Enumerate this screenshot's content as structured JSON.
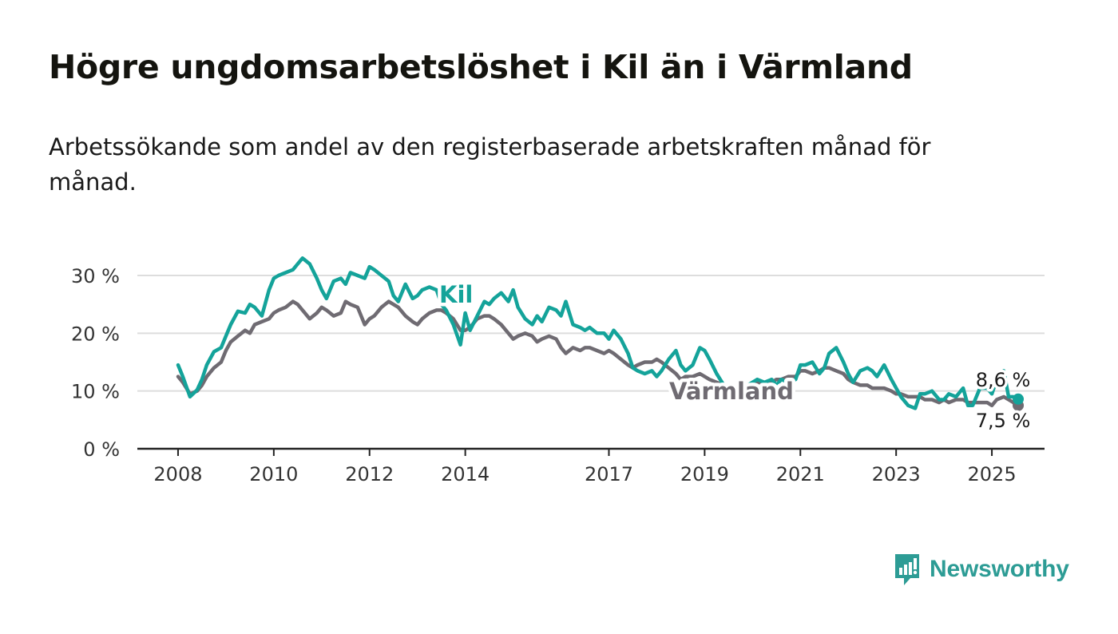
{
  "title": "Högre ungdomsarbetslöshet i Kil än i Värmland",
  "subtitle": "Arbetssökande som andel av den registerbaserade arbetskraften månad för månad.",
  "brand": {
    "name": "Newsworthy",
    "color": "#2d9c95",
    "icon": "newsworthy-logo-icon"
  },
  "colors": {
    "kil": "#14a39a",
    "varmland": "#6f6b72",
    "grid": "#dddddd",
    "axis": "#222222"
  },
  "chart_data": {
    "type": "line",
    "y_ticks": [
      {
        "value": 0,
        "label": "0 %"
      },
      {
        "value": 10,
        "label": "10 %"
      },
      {
        "value": 20,
        "label": "20 %"
      },
      {
        "value": 30,
        "label": "30 %"
      }
    ],
    "x_ticks": [
      {
        "value": 2008,
        "label": "2008"
      },
      {
        "value": 2010,
        "label": "2010"
      },
      {
        "value": 2012,
        "label": "2012"
      },
      {
        "value": 2014,
        "label": "2014"
      },
      {
        "value": 2017,
        "label": "2017"
      },
      {
        "value": 2019,
        "label": "2019"
      },
      {
        "value": 2021,
        "label": "2021"
      },
      {
        "value": 2023,
        "label": "2023"
      },
      {
        "value": 2025,
        "label": "2025"
      }
    ],
    "xlim": [
      2007.15,
      2026.1
    ],
    "ylim": [
      0,
      30
    ],
    "grid": true,
    "end_labels": {
      "kil": "8,6 %",
      "varmland": "7,5 %"
    },
    "series": [
      {
        "name": "Kil",
        "key": "kil",
        "points": [
          [
            2008.0,
            14.5
          ],
          [
            2008.1,
            12.5
          ],
          [
            2008.25,
            9.0
          ],
          [
            2008.4,
            10.2
          ],
          [
            2008.5,
            12.0
          ],
          [
            2008.6,
            14.5
          ],
          [
            2008.75,
            16.8
          ],
          [
            2008.9,
            17.5
          ],
          [
            2009.0,
            19.5
          ],
          [
            2009.1,
            21.5
          ],
          [
            2009.25,
            23.8
          ],
          [
            2009.4,
            23.5
          ],
          [
            2009.5,
            25.0
          ],
          [
            2009.6,
            24.5
          ],
          [
            2009.75,
            23.0
          ],
          [
            2009.9,
            27.5
          ],
          [
            2010.0,
            29.5
          ],
          [
            2010.1,
            30.0
          ],
          [
            2010.25,
            30.5
          ],
          [
            2010.4,
            31.0
          ],
          [
            2010.5,
            32.0
          ],
          [
            2010.6,
            33.0
          ],
          [
            2010.75,
            32.0
          ],
          [
            2010.9,
            29.5
          ],
          [
            2011.0,
            27.5
          ],
          [
            2011.1,
            26.0
          ],
          [
            2011.25,
            29.0
          ],
          [
            2011.4,
            29.5
          ],
          [
            2011.5,
            28.5
          ],
          [
            2011.6,
            30.5
          ],
          [
            2011.75,
            30.0
          ],
          [
            2011.9,
            29.5
          ],
          [
            2012.0,
            31.5
          ],
          [
            2012.1,
            31.0
          ],
          [
            2012.25,
            30.0
          ],
          [
            2012.4,
            29.0
          ],
          [
            2012.5,
            26.5
          ],
          [
            2012.6,
            25.5
          ],
          [
            2012.75,
            28.5
          ],
          [
            2012.9,
            26.0
          ],
          [
            2013.0,
            26.5
          ],
          [
            2013.1,
            27.5
          ],
          [
            2013.25,
            28.0
          ],
          [
            2013.4,
            27.5
          ],
          [
            2013.5,
            25.0
          ],
          [
            2013.6,
            24.0
          ],
          [
            2013.75,
            21.5
          ],
          [
            2013.9,
            18.0
          ],
          [
            2014.0,
            23.5
          ],
          [
            2014.1,
            20.5
          ],
          [
            2014.25,
            23.0
          ],
          [
            2014.4,
            25.5
          ],
          [
            2014.5,
            25.0
          ],
          [
            2014.6,
            26.0
          ],
          [
            2014.75,
            27.0
          ],
          [
            2014.9,
            25.5
          ],
          [
            2015.0,
            27.5
          ],
          [
            2015.1,
            24.5
          ],
          [
            2015.25,
            22.5
          ],
          [
            2015.4,
            21.5
          ],
          [
            2015.5,
            23.0
          ],
          [
            2015.6,
            22.0
          ],
          [
            2015.75,
            24.5
          ],
          [
            2015.9,
            24.0
          ],
          [
            2016.0,
            23.0
          ],
          [
            2016.1,
            25.5
          ],
          [
            2016.25,
            21.5
          ],
          [
            2016.4,
            21.0
          ],
          [
            2016.5,
            20.5
          ],
          [
            2016.6,
            21.0
          ],
          [
            2016.75,
            20.0
          ],
          [
            2016.9,
            20.0
          ],
          [
            2017.0,
            19.0
          ],
          [
            2017.1,
            20.5
          ],
          [
            2017.25,
            19.0
          ],
          [
            2017.4,
            16.5
          ],
          [
            2017.5,
            14.0
          ],
          [
            2017.6,
            13.5
          ],
          [
            2017.75,
            13.0
          ],
          [
            2017.9,
            13.5
          ],
          [
            2018.0,
            12.5
          ],
          [
            2018.1,
            13.5
          ],
          [
            2018.25,
            15.5
          ],
          [
            2018.4,
            17.0
          ],
          [
            2018.5,
            14.5
          ],
          [
            2018.6,
            13.5
          ],
          [
            2018.75,
            14.5
          ],
          [
            2018.9,
            17.5
          ],
          [
            2019.0,
            17.0
          ],
          [
            2019.1,
            15.5
          ],
          [
            2019.25,
            13.0
          ],
          [
            2019.4,
            11.0
          ],
          [
            2019.5,
            9.0
          ],
          [
            2020.0,
            11.5
          ],
          [
            2020.1,
            12.0
          ],
          [
            2020.25,
            11.5
          ],
          [
            2020.4,
            12.0
          ],
          [
            2020.5,
            11.0
          ],
          [
            2020.6,
            12.0
          ],
          [
            2020.75,
            11.5
          ],
          [
            2020.9,
            12.0
          ],
          [
            2021.0,
            14.5
          ],
          [
            2021.1,
            14.5
          ],
          [
            2021.25,
            15.0
          ],
          [
            2021.4,
            13.0
          ],
          [
            2021.5,
            14.0
          ],
          [
            2021.6,
            16.5
          ],
          [
            2021.75,
            17.5
          ],
          [
            2021.9,
            15.0
          ],
          [
            2022.0,
            13.0
          ],
          [
            2022.1,
            11.5
          ],
          [
            2022.25,
            13.5
          ],
          [
            2022.4,
            14.0
          ],
          [
            2022.5,
            13.5
          ],
          [
            2022.6,
            12.5
          ],
          [
            2022.75,
            14.5
          ],
          [
            2022.9,
            12.0
          ],
          [
            2023.0,
            10.5
          ],
          [
            2023.1,
            9.0
          ],
          [
            2023.25,
            7.5
          ],
          [
            2023.4,
            7.0
          ],
          [
            2023.5,
            9.5
          ],
          [
            2023.6,
            9.5
          ],
          [
            2023.75,
            10.0
          ],
          [
            2023.9,
            8.5
          ],
          [
            2024.0,
            8.5
          ],
          [
            2024.1,
            9.5
          ],
          [
            2024.25,
            9.0
          ],
          [
            2024.4,
            10.5
          ],
          [
            2024.5,
            7.5
          ],
          [
            2024.6,
            7.5
          ],
          [
            2024.75,
            10.5
          ],
          [
            2024.9,
            10.5
          ],
          [
            2025.0,
            9.5
          ],
          [
            2025.1,
            12.0
          ],
          [
            2025.25,
            13.5
          ],
          [
            2025.35,
            9.0
          ],
          [
            2025.45,
            9.0
          ],
          [
            2025.55,
            8.6
          ]
        ]
      },
      {
        "name": "Värmland",
        "key": "varmland",
        "points": [
          [
            2008.0,
            12.5
          ],
          [
            2008.1,
            11.5
          ],
          [
            2008.25,
            9.5
          ],
          [
            2008.4,
            10.0
          ],
          [
            2008.5,
            11.0
          ],
          [
            2008.6,
            12.5
          ],
          [
            2008.75,
            14.0
          ],
          [
            2008.9,
            15.0
          ],
          [
            2009.0,
            17.0
          ],
          [
            2009.1,
            18.5
          ],
          [
            2009.25,
            19.5
          ],
          [
            2009.4,
            20.5
          ],
          [
            2009.5,
            20.0
          ],
          [
            2009.6,
            21.5
          ],
          [
            2009.75,
            22.0
          ],
          [
            2009.9,
            22.5
          ],
          [
            2010.0,
            23.5
          ],
          [
            2010.1,
            24.0
          ],
          [
            2010.25,
            24.5
          ],
          [
            2010.4,
            25.5
          ],
          [
            2010.5,
            25.0
          ],
          [
            2010.6,
            24.0
          ],
          [
            2010.75,
            22.5
          ],
          [
            2010.9,
            23.5
          ],
          [
            2011.0,
            24.5
          ],
          [
            2011.1,
            24.0
          ],
          [
            2011.25,
            23.0
          ],
          [
            2011.4,
            23.5
          ],
          [
            2011.5,
            25.5
          ],
          [
            2011.6,
            25.0
          ],
          [
            2011.75,
            24.5
          ],
          [
            2011.9,
            21.5
          ],
          [
            2012.0,
            22.5
          ],
          [
            2012.1,
            23.0
          ],
          [
            2012.25,
            24.5
          ],
          [
            2012.4,
            25.5
          ],
          [
            2012.5,
            25.0
          ],
          [
            2012.6,
            24.5
          ],
          [
            2012.75,
            23.0
          ],
          [
            2012.9,
            22.0
          ],
          [
            2013.0,
            21.5
          ],
          [
            2013.1,
            22.5
          ],
          [
            2013.25,
            23.5
          ],
          [
            2013.4,
            24.0
          ],
          [
            2013.5,
            24.0
          ],
          [
            2013.6,
            23.5
          ],
          [
            2013.75,
            22.5
          ],
          [
            2013.9,
            20.5
          ],
          [
            2014.0,
            20.5
          ],
          [
            2014.1,
            21.0
          ],
          [
            2014.25,
            22.5
          ],
          [
            2014.4,
            23.0
          ],
          [
            2014.5,
            23.0
          ],
          [
            2014.6,
            22.5
          ],
          [
            2014.75,
            21.5
          ],
          [
            2014.9,
            20.0
          ],
          [
            2015.0,
            19.0
          ],
          [
            2015.1,
            19.5
          ],
          [
            2015.25,
            20.0
          ],
          [
            2015.4,
            19.5
          ],
          [
            2015.5,
            18.5
          ],
          [
            2015.6,
            19.0
          ],
          [
            2015.75,
            19.5
          ],
          [
            2015.9,
            19.0
          ],
          [
            2016.0,
            17.5
          ],
          [
            2016.1,
            16.5
          ],
          [
            2016.25,
            17.5
          ],
          [
            2016.4,
            17.0
          ],
          [
            2016.5,
            17.5
          ],
          [
            2016.6,
            17.5
          ],
          [
            2016.75,
            17.0
          ],
          [
            2016.9,
            16.5
          ],
          [
            2017.0,
            17.0
          ],
          [
            2017.1,
            16.5
          ],
          [
            2017.25,
            15.5
          ],
          [
            2017.4,
            14.5
          ],
          [
            2017.5,
            14.0
          ],
          [
            2017.6,
            14.5
          ],
          [
            2017.75,
            15.0
          ],
          [
            2017.9,
            15.0
          ],
          [
            2018.0,
            15.5
          ],
          [
            2018.1,
            15.0
          ],
          [
            2018.25,
            14.0
          ],
          [
            2018.4,
            13.0
          ],
          [
            2018.5,
            12.0
          ],
          [
            2018.6,
            12.5
          ],
          [
            2018.75,
            12.5
          ],
          [
            2018.9,
            13.0
          ],
          [
            2019.0,
            12.5
          ],
          [
            2019.1,
            12.0
          ],
          [
            2019.25,
            11.5
          ],
          [
            2019.4,
            11.0
          ],
          [
            2019.5,
            10.5
          ],
          [
            2020.0,
            11.0
          ],
          [
            2020.1,
            11.5
          ],
          [
            2020.25,
            11.0
          ],
          [
            2020.4,
            11.5
          ],
          [
            2020.5,
            12.0
          ],
          [
            2020.6,
            12.0
          ],
          [
            2020.75,
            12.5
          ],
          [
            2020.9,
            12.5
          ],
          [
            2021.0,
            13.5
          ],
          [
            2021.1,
            13.5
          ],
          [
            2021.25,
            13.0
          ],
          [
            2021.4,
            13.5
          ],
          [
            2021.5,
            14.0
          ],
          [
            2021.6,
            14.0
          ],
          [
            2021.75,
            13.5
          ],
          [
            2021.9,
            13.0
          ],
          [
            2022.0,
            12.0
          ],
          [
            2022.1,
            11.5
          ],
          [
            2022.25,
            11.0
          ],
          [
            2022.4,
            11.0
          ],
          [
            2022.5,
            10.5
          ],
          [
            2022.6,
            10.5
          ],
          [
            2022.75,
            10.5
          ],
          [
            2022.9,
            10.0
          ],
          [
            2023.0,
            9.5
          ],
          [
            2023.1,
            9.5
          ],
          [
            2023.25,
            9.0
          ],
          [
            2023.4,
            9.0
          ],
          [
            2023.5,
            9.0
          ],
          [
            2023.6,
            8.5
          ],
          [
            2023.75,
            8.5
          ],
          [
            2023.9,
            8.0
          ],
          [
            2024.0,
            8.5
          ],
          [
            2024.1,
            8.0
          ],
          [
            2024.25,
            8.5
          ],
          [
            2024.4,
            8.5
          ],
          [
            2024.5,
            8.0
          ],
          [
            2024.6,
            8.0
          ],
          [
            2024.75,
            8.0
          ],
          [
            2024.9,
            8.0
          ],
          [
            2025.0,
            7.5
          ],
          [
            2025.1,
            8.5
          ],
          [
            2025.25,
            9.0
          ],
          [
            2025.35,
            8.5
          ],
          [
            2025.45,
            8.0
          ],
          [
            2025.55,
            7.5
          ]
        ]
      }
    ]
  }
}
